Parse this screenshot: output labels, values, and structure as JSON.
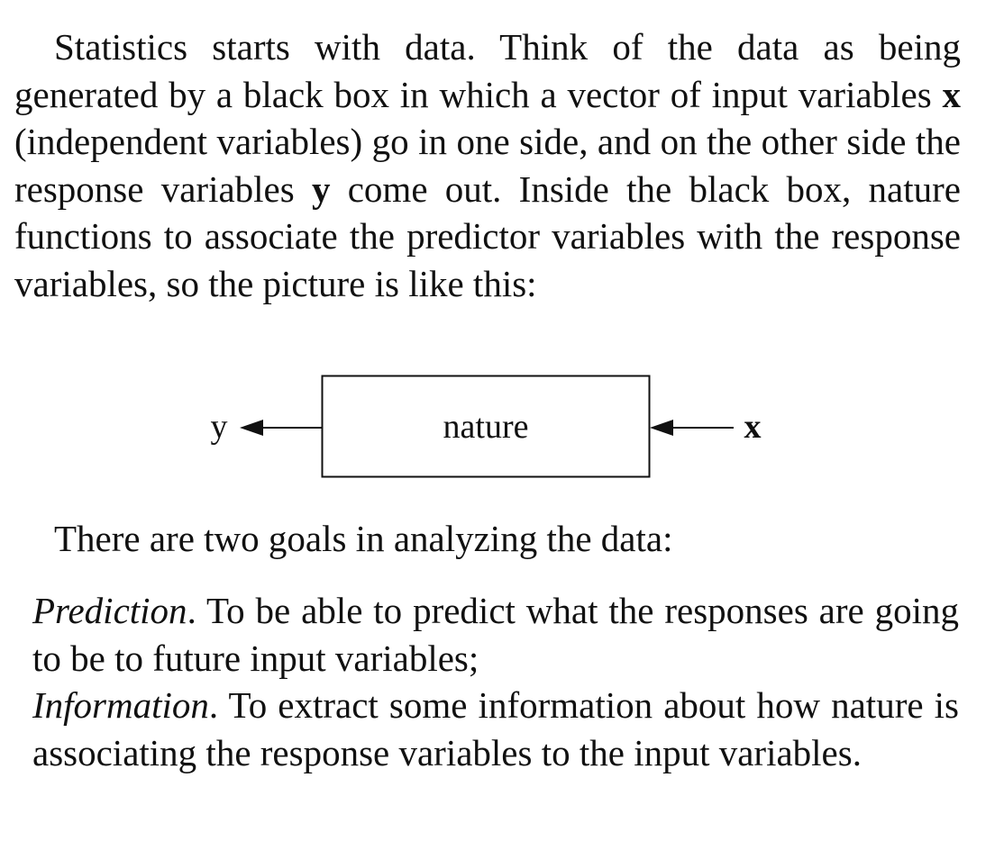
{
  "paragraph": {
    "s1": "Statistics starts with data. Think of the data as being generated by a black box in which a vector of input variables ",
    "x_var": "x",
    "s2": " (independent variables) go in one side, and on the other side the response variables ",
    "y_var": "y",
    "s3": " come out. Inside the black box, nature functions to associate the predictor variables with the response variables, so the picture is like this:"
  },
  "diagram": {
    "box_label": "nature",
    "left_label": "y",
    "right_label": "x"
  },
  "goals_intro": "There are two goals in analyzing the data:",
  "goals": [
    {
      "term": "Prediction",
      "text": ". To be able to predict what the responses are going to be to future input variables;"
    },
    {
      "term": "Information",
      "text": ". To extract some information about how nature is associating the response variables to the input variables."
    }
  ]
}
